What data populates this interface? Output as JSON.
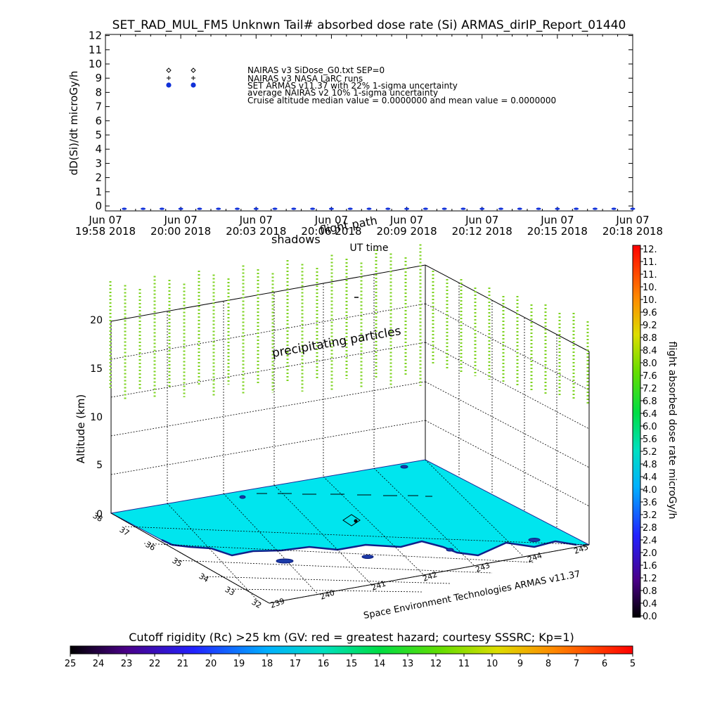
{
  "title": "SET_RAD_MUL_FM5 Unknwn Tail#  absorbed dose rate (Si) ARMAS_dirIP_Report_01440",
  "chart_data": [
    {
      "type": "scatter",
      "ylabel": "dD(Si)/dt microGy/h",
      "xlabel": "UT time",
      "ylim": [
        0,
        12
      ],
      "yticks": [
        "0",
        "1",
        "2",
        "3",
        "4",
        "5",
        "6",
        "7",
        "8",
        "9",
        "10",
        "11",
        "12"
      ],
      "xticks": [
        {
          "top": "Jun 07",
          "bottom": "19:58 2018"
        },
        {
          "top": "Jun 07",
          "bottom": "20:00 2018"
        },
        {
          "top": "Jun 07",
          "bottom": "20:03 2018"
        },
        {
          "top": "Jun 07",
          "bottom": "20:06 2018"
        },
        {
          "top": "Jun 07",
          "bottom": "20:09 2018"
        },
        {
          "top": "Jun 07",
          "bottom": "20:12 2018"
        },
        {
          "top": "Jun 07",
          "bottom": "20:15 2018"
        },
        {
          "top": "Jun 07",
          "bottom": "20:18 2018"
        }
      ],
      "legend_location": "top-left",
      "legend": [
        {
          "marker": "diamond",
          "label": "NAIRAS v3 SiDose_G0.txt SEP=0"
        },
        {
          "marker": "plus",
          "label": "NAIRAS v3 NASA LaRC runs"
        },
        {
          "marker": "dot",
          "color": "#1030d8",
          "label": "SET ARMAS v11.37 with 22% 1-sigma uncertainty"
        },
        {
          "marker": "none",
          "label": "average NAIRAS v2 10% 1-sigma uncertainty"
        },
        {
          "marker": "none",
          "label": "Cruise altitude median value = 0.0000000 and mean value = 0.0000000"
        }
      ],
      "series": [
        {
          "name": "SET ARMAS v11.37 with 22% 1-sigma uncertainty",
          "x_index": [
            0.5,
            1,
            1.5,
            2,
            2.5,
            3,
            3.5,
            4,
            4.5,
            5,
            5.5,
            6,
            6.5,
            7,
            7.5,
            8,
            8.5,
            9,
            9.5,
            10,
            10.5,
            11,
            11.5,
            12,
            12.5,
            13,
            13.5,
            14
          ],
          "y": [
            0,
            0,
            0,
            0,
            0,
            0,
            0,
            0,
            0,
            0,
            0,
            0,
            0,
            0,
            0,
            0,
            0,
            0,
            0,
            0,
            0,
            0,
            0,
            0,
            0,
            0,
            0,
            0
          ]
        }
      ]
    },
    {
      "type": "3d-flight-track",
      "zlabel": "Altitude (km)",
      "zticks": [
        "0",
        "5",
        "10",
        "15",
        "20"
      ],
      "lat_ticks": [
        "38",
        "37",
        "36",
        "35",
        "34",
        "33",
        "32"
      ],
      "lon_ticks": [
        "239",
        "240",
        "241",
        "242",
        "243",
        "244",
        "245"
      ],
      "annotations": [
        "shadows",
        "flight path",
        "precipitating particles",
        "Space Environment Technologies ARMAS v11.37"
      ],
      "surface_color": "#00e5ee",
      "particle_color": "#7ed321"
    }
  ],
  "dose_colorbar": {
    "label": "flight absorbed dose rate microGy/h",
    "ticks": [
      "12.",
      "11.",
      "11.",
      "10.",
      "10.",
      "9.6",
      "9.2",
      "8.8",
      "8.4",
      "8.0",
      "7.6",
      "7.2",
      "6.8",
      "6.4",
      "6.0",
      "5.6",
      "5.2",
      "4.8",
      "4.4",
      "4.0",
      "3.6",
      "3.2",
      "2.8",
      "2.4",
      "2.0",
      "1.6",
      "1.2",
      "0.8",
      "0.4",
      "0.0"
    ]
  },
  "rigidity_colorbar": {
    "label": "Cutoff rigidity (Rc) >25 km (GV: red = greatest hazard; courtesy SSSRC; Kp=1)",
    "ticks": [
      "25",
      "24",
      "23",
      "22",
      "21",
      "20",
      "19",
      "18",
      "17",
      "16",
      "15",
      "14",
      "13",
      "12",
      "11",
      "10",
      "9",
      "8",
      "7",
      "6",
      "5"
    ]
  }
}
